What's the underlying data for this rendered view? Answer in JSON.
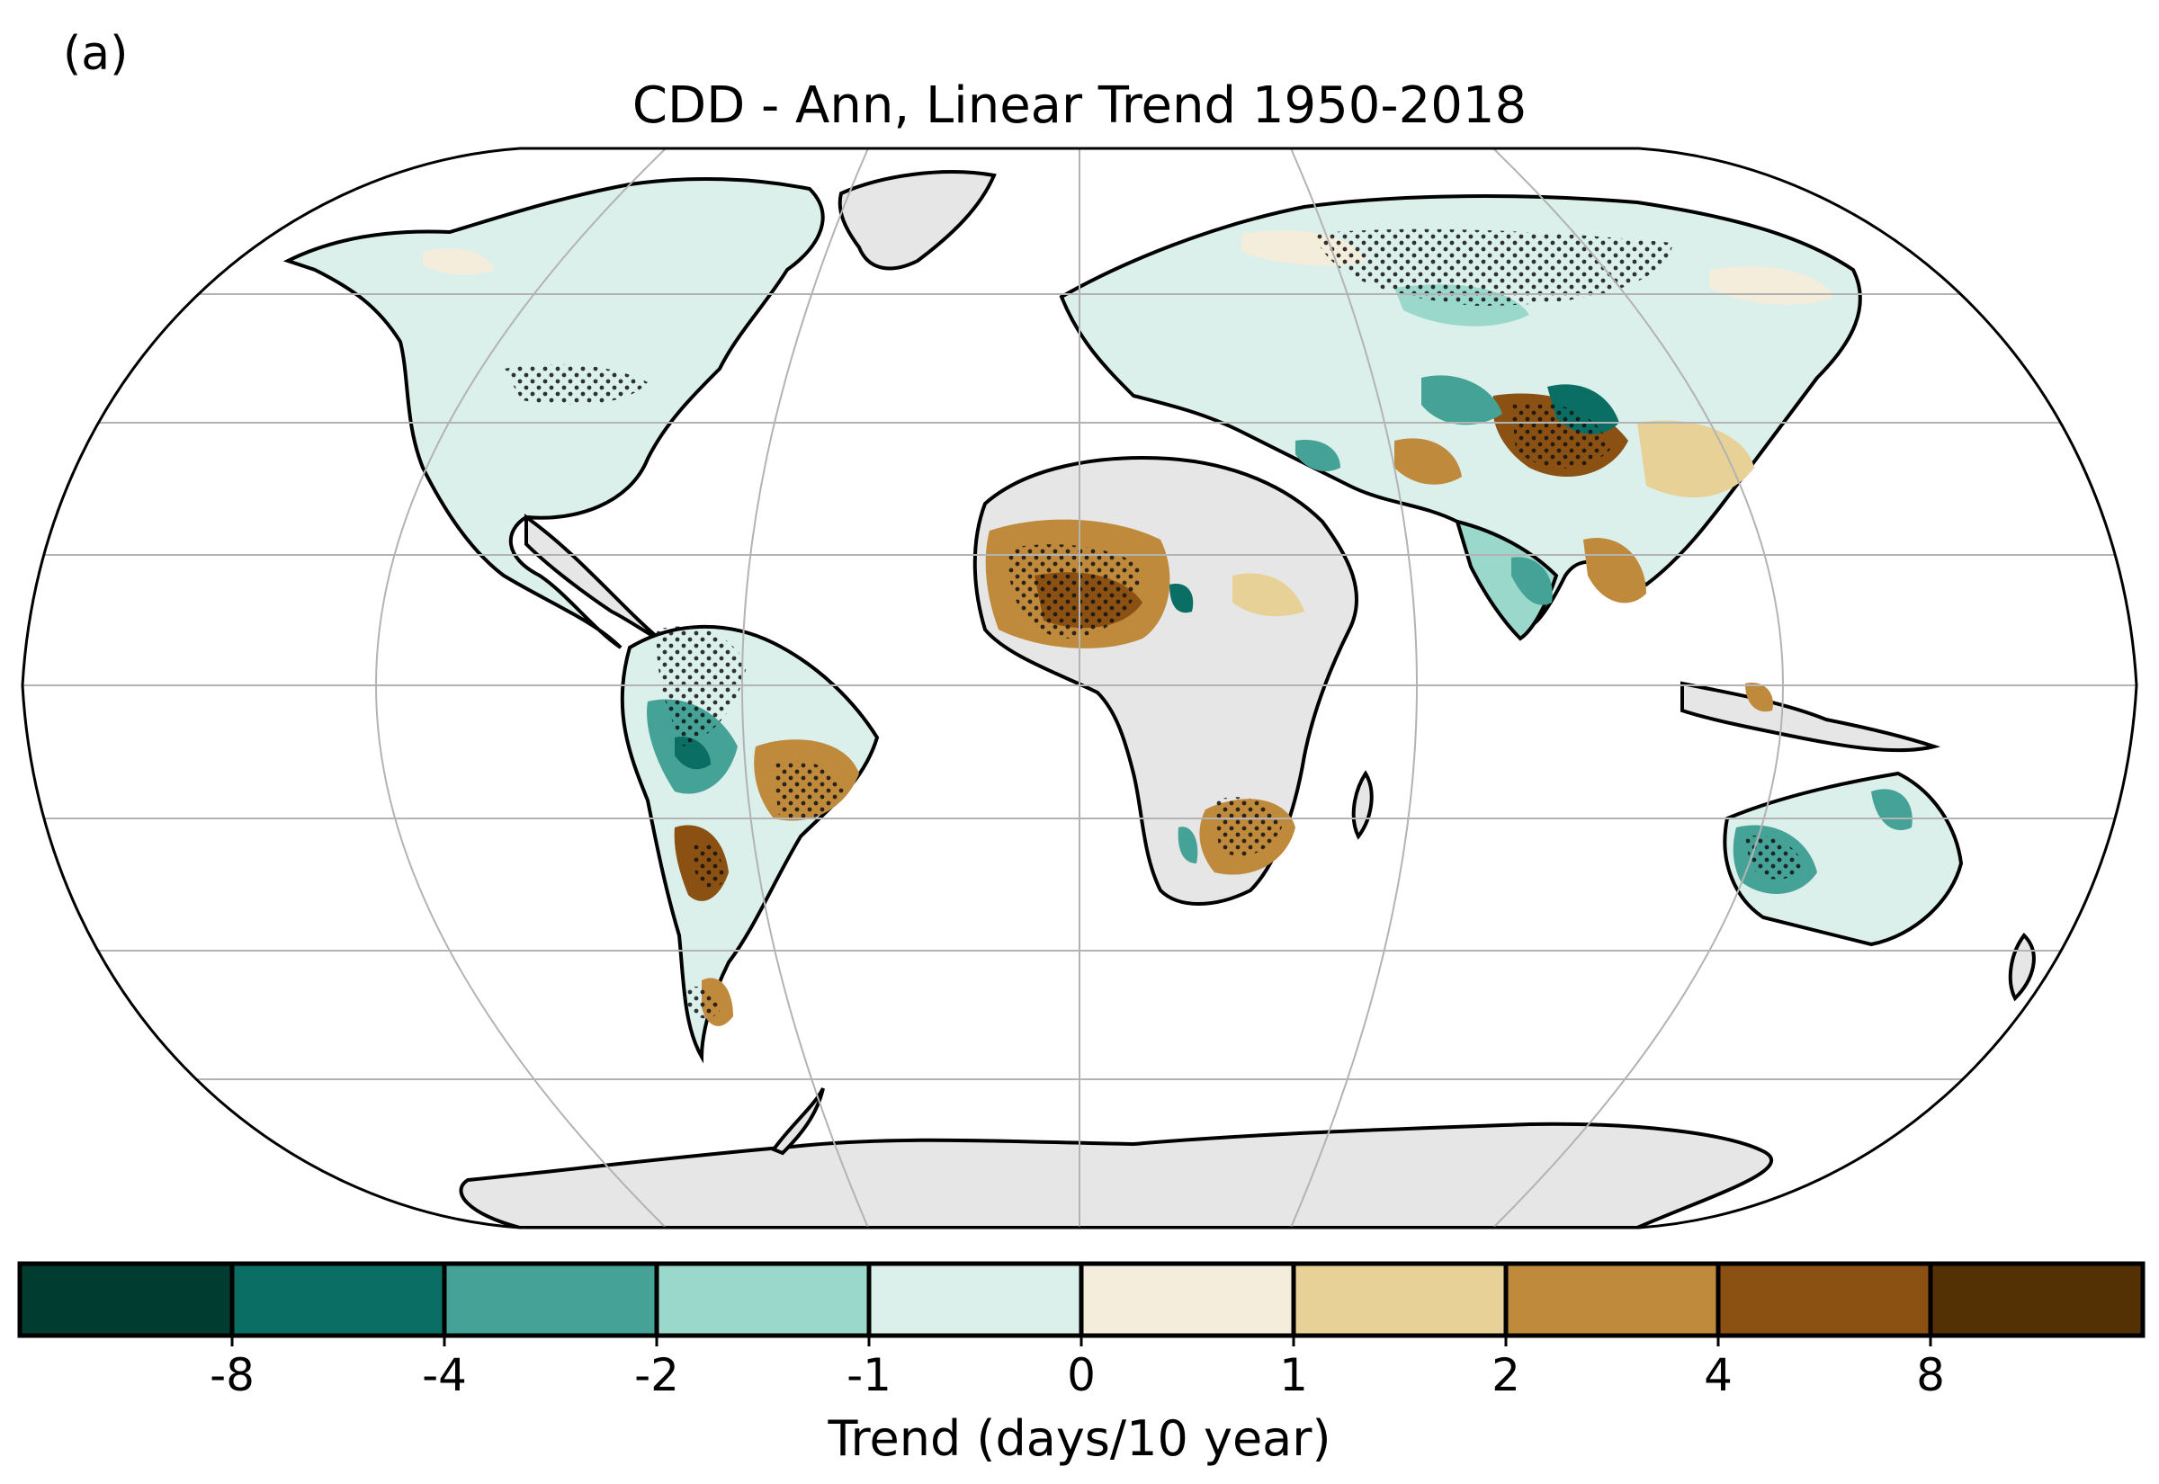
{
  "panel_label": "(a)",
  "title": "CDD - Ann, Linear Trend 1950-2018",
  "colors": {
    "land_no_data": "#e6e6e6",
    "ocean": "#ffffff",
    "gridline": "#b3b3b3",
    "coastline": "#000000",
    "bins": [
      "#003c30",
      "#0b6e65",
      "#45a296",
      "#9ad8cc",
      "#dbefeb",
      "#f5eddb",
      "#e8d196",
      "#c08a3c",
      "#8b5112",
      "#543005"
    ]
  },
  "colorbar": {
    "tick_labels": [
      "-8",
      "-4",
      "-2",
      "-1",
      "0",
      "1",
      "2",
      "4",
      "8"
    ],
    "label": "Trend (days/10 year)"
  },
  "map": {
    "projection": "robinson",
    "stippling": "dots mark significant trends",
    "regions": [
      {
        "region": "Alaska/Canada",
        "trend_bin": "-1 to 0"
      },
      {
        "region": "Greenland",
        "trend_bin": "no data"
      },
      {
        "region": "United States",
        "trend_bin": "-1 to 0"
      },
      {
        "region": "Amazon",
        "trend_bin": "-4 to -2"
      },
      {
        "region": "Eastern Brazil",
        "trend_bin": "2 to 4"
      },
      {
        "region": "Southern Andes",
        "trend_bin": "4 to 8"
      },
      {
        "region": "Europe/Russia",
        "trend_bin": "-1 to 0"
      },
      {
        "region": "Sahel / West Africa",
        "trend_bin": "2 to 4"
      },
      {
        "region": "Central & East Africa",
        "trend_bin": "no data"
      },
      {
        "region": "Southern Africa",
        "trend_bin": "2 to 4"
      },
      {
        "region": "Central Asia",
        "trend_bin": "-4 to -2"
      },
      {
        "region": "Tibetan Plateau",
        "trend_bin": "4 to 8"
      },
      {
        "region": "China",
        "trend_bin": "0 to 1"
      },
      {
        "region": "India",
        "trend_bin": "-2 to -1"
      },
      {
        "region": "Australia",
        "trend_bin": "-1 to 0"
      },
      {
        "region": "Antarctica",
        "trend_bin": "no data"
      }
    ]
  }
}
